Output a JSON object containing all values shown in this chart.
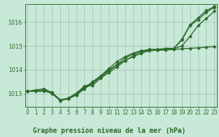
{
  "title": "Graphe pression niveau de la mer (hPa)",
  "xlabel_hours": [
    0,
    1,
    2,
    3,
    4,
    5,
    6,
    7,
    8,
    9,
    10,
    11,
    12,
    13,
    14,
    15,
    16,
    17,
    18,
    19,
    20,
    21,
    22,
    23
  ],
  "series": [
    {
      "name": "line_flat",
      "x": [
        0,
        1,
        2,
        3,
        4,
        5,
        6,
        7,
        8,
        9,
        10,
        11,
        12,
        13,
        14,
        15,
        16,
        17,
        18,
        19,
        20,
        21,
        22,
        23
      ],
      "y": [
        1013.1,
        1013.1,
        1013.1,
        1013.05,
        1012.75,
        1012.8,
        1012.95,
        1013.2,
        1013.45,
        1013.7,
        1013.95,
        1014.2,
        1014.4,
        1014.55,
        1014.7,
        1014.8,
        1014.82,
        1014.83,
        1014.85,
        1014.88,
        1014.9,
        1014.92,
        1014.95,
        1014.97
      ],
      "marker": "D",
      "color": "#2d6a2d",
      "linewidth": 1.0,
      "markersize": 2.5
    },
    {
      "name": "line_mid1",
      "x": [
        0,
        1,
        2,
        3,
        4,
        5,
        6,
        7,
        8,
        9,
        10,
        11,
        12,
        13,
        14,
        15,
        16,
        17,
        18,
        19,
        20,
        21,
        22,
        23
      ],
      "y": [
        1013.1,
        1013.1,
        1013.15,
        1013.0,
        1012.72,
        1012.78,
        1012.95,
        1013.25,
        1013.5,
        1013.75,
        1014.05,
        1014.35,
        1014.55,
        1014.7,
        1014.8,
        1014.85,
        1014.85,
        1014.85,
        1014.88,
        1015.0,
        1015.4,
        1015.85,
        1016.15,
        1016.45
      ],
      "marker": "D",
      "color": "#2d6a2d",
      "linewidth": 1.0,
      "markersize": 2.5
    },
    {
      "name": "line_mid2",
      "x": [
        0,
        1,
        2,
        3,
        4,
        5,
        6,
        7,
        8,
        9,
        10,
        11,
        12,
        13,
        14,
        15,
        16,
        17,
        18,
        19,
        20,
        21,
        22,
        23
      ],
      "y": [
        1013.1,
        1013.15,
        1013.2,
        1013.05,
        1012.72,
        1012.8,
        1013.0,
        1013.3,
        1013.35,
        1013.65,
        1013.88,
        1014.12,
        1014.38,
        1014.58,
        1014.72,
        1014.82,
        1014.83,
        1014.85,
        1014.88,
        1015.25,
        1015.85,
        1016.1,
        1016.4,
        1016.62
      ],
      "marker": "D",
      "color": "#2d6a2d",
      "linewidth": 1.0,
      "markersize": 2.5
    },
    {
      "name": "line_high",
      "x": [
        0,
        1,
        2,
        3,
        4,
        5,
        6,
        7,
        8,
        9,
        10,
        11,
        12,
        13,
        14,
        15,
        16,
        17,
        18,
        19,
        20,
        21,
        22,
        23
      ],
      "y": [
        1013.1,
        1013.15,
        1013.2,
        1013.05,
        1012.72,
        1012.82,
        1013.02,
        1013.32,
        1013.42,
        1013.72,
        1014.0,
        1014.22,
        1014.5,
        1014.65,
        1014.78,
        1014.85,
        1014.85,
        1014.9,
        1014.9,
        1015.28,
        1015.88,
        1016.18,
        1016.48,
        1016.65
      ],
      "marker": "D",
      "color": "#2d6a2d",
      "linewidth": 1.0,
      "markersize": 2.5
    }
  ],
  "ylim": [
    1012.45,
    1016.75
  ],
  "yticks": [
    1013,
    1014,
    1015,
    1016
  ],
  "xlim": [
    -0.3,
    23.3
  ],
  "bg_color": "#c8e8d8",
  "grid_color": "#9dbfaf",
  "line_color": "#2d6a2d",
  "title_color": "#2d6a2d",
  "tick_color": "#2d6a2d",
  "title_fontsize": 7.0,
  "tick_fontsize": 5.5,
  "ytick_fontsize": 6.0
}
